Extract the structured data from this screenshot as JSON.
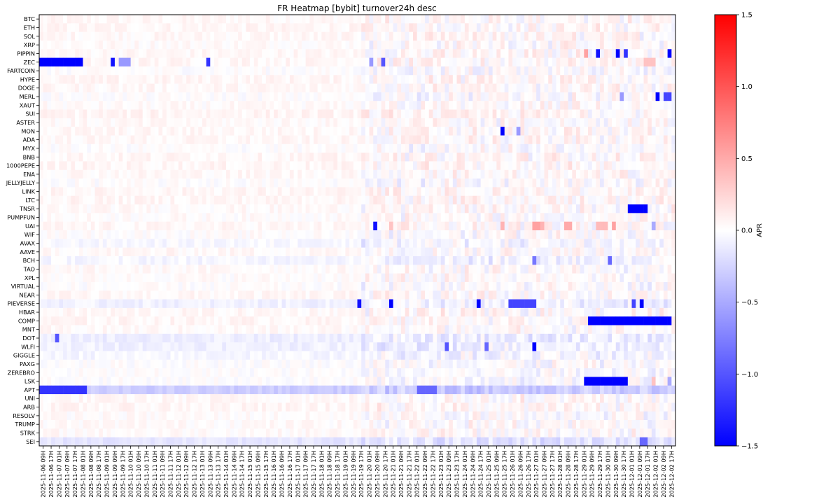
{
  "chart_data": {
    "type": "heatmap",
    "title": "FR Heatmap [bybit] turnover24h desc",
    "colorbar": {
      "label": "APR",
      "vmin": -1.5,
      "vmax": 1.5,
      "ticks": [
        1.5,
        1.0,
        0.5,
        0.0,
        -0.5,
        -1.0,
        -1.5
      ],
      "tick_labels": [
        "1.5",
        "1.0",
        "0.5",
        "0.0",
        "−0.5",
        "−1.0",
        "−1.5"
      ],
      "colormap": "bwr",
      "colors": {
        "low": "#0000ff",
        "mid": "#ffffff",
        "high": "#ff0000"
      }
    },
    "y_labels": [
      "BTC",
      "ETH",
      "SOL",
      "XRP",
      "PIPPIN",
      "ZEC",
      "FARTCOIN",
      "HYPE",
      "DOGE",
      "MERL",
      "XAUT",
      "SUI",
      "ASTER",
      "MON",
      "ADA",
      "MYX",
      "BNB",
      "1000PEPE",
      "ENA",
      "JELLYJELLY",
      "LINK",
      "LTC",
      "TNSR",
      "PUMPFUN",
      "UAI",
      "WIF",
      "AVAX",
      "AAVE",
      "BCH",
      "TAO",
      "XPL",
      "VIRTUAL",
      "NEAR",
      "PIEVERSE",
      "HBAR",
      "COMP",
      "MNT",
      "DOT",
      "WLFI",
      "GIGGLE",
      "PAXG",
      "ZEREBRO",
      "LSK",
      "APT",
      "UNI",
      "ARB",
      "RESOLV",
      "TRUMP",
      "STRK",
      "SEI"
    ],
    "x_labels": [
      "2025-11-06 09H",
      "2025-11-06 17H",
      "2025-11-07 01H",
      "2025-11-07 09H",
      "2025-11-07 17H",
      "2025-11-08 01H",
      "2025-11-08 09H",
      "2025-11-08 17H",
      "2025-11-09 01H",
      "2025-11-09 09H",
      "2025-11-09 17H",
      "2025-11-10 01H",
      "2025-11-10 09H",
      "2025-11-10 17H",
      "2025-11-11 01H",
      "2025-11-11 09H",
      "2025-11-11 17H",
      "2025-11-12 01H",
      "2025-11-12 09H",
      "2025-11-12 17H",
      "2025-11-13 01H",
      "2025-11-13 09H",
      "2025-11-13 17H",
      "2025-11-14 01H",
      "2025-11-14 09H",
      "2025-11-14 17H",
      "2025-11-15 01H",
      "2025-11-15 09H",
      "2025-11-15 17H",
      "2025-11-16 01H",
      "2025-11-16 09H",
      "2025-11-16 17H",
      "2025-11-17 01H",
      "2025-11-17 09H",
      "2025-11-17 17H",
      "2025-11-18 01H",
      "2025-11-18 09H",
      "2025-11-18 17H",
      "2025-11-19 01H",
      "2025-11-19 09H",
      "2025-11-19 17H",
      "2025-11-20 01H",
      "2025-11-20 09H",
      "2025-11-20 17H",
      "2025-11-21 01H",
      "2025-11-21 09H",
      "2025-11-21 17H",
      "2025-11-22 01H",
      "2025-11-22 09H",
      "2025-11-22 17H",
      "2025-11-23 01H",
      "2025-11-23 09H",
      "2025-11-23 17H",
      "2025-11-24 01H",
      "2025-11-24 09H",
      "2025-11-24 17H",
      "2025-11-25 01H",
      "2025-11-25 09H",
      "2025-11-25 17H",
      "2025-11-26 01H",
      "2025-11-26 09H",
      "2025-11-26 17H",
      "2025-11-27 01H",
      "2025-11-27 09H",
      "2025-11-27 17H",
      "2025-11-28 01H",
      "2025-11-28 09H",
      "2025-11-28 17H",
      "2025-11-29 01H",
      "2025-11-29 09H",
      "2025-11-29 17H",
      "2025-11-30 01H",
      "2025-11-30 09H",
      "2025-11-30 17H",
      "2025-12-01 01H",
      "2025-12-01 09H",
      "2025-12-01 17H",
      "2025-12-02 01H",
      "2025-12-02 09H",
      "2025-12-02 17H"
    ],
    "columns_per_x_label": 2,
    "n_columns": 160,
    "values_note_units": "APR",
    "baseline": {
      "BTC": 0.04,
      "ETH": 0.05,
      "SOL": 0.04,
      "XRP": 0.03,
      "PIPPIN": 0.04,
      "ZEC": 0.05,
      "FARTCOIN": 0.0,
      "HYPE": 0.05,
      "DOGE": 0.04,
      "MERL": 0.0,
      "XAUT": 0.02,
      "SUI": 0.06,
      "ASTER": 0.03,
      "MON": 0.04,
      "ADA": 0.04,
      "MYX": 0.0,
      "BNB": 0.05,
      "1000PEPE": 0.05,
      "ENA": 0.04,
      "JELLYJELLY": 0.0,
      "LINK": 0.05,
      "LTC": 0.05,
      "TNSR": 0.03,
      "PUMPFUN": 0.02,
      "UAI": 0.04,
      "WIF": 0.01,
      "AVAX": -0.04,
      "AAVE": 0.04,
      "BCH": -0.05,
      "TAO": 0.03,
      "XPL": 0.02,
      "VIRTUAL": 0.0,
      "NEAR": 0.04,
      "PIEVERSE": -0.08,
      "HBAR": 0.04,
      "COMP": 0.05,
      "MNT": 0.03,
      "DOT": -0.1,
      "WLFI": -0.08,
      "GIGGLE": -0.05,
      "PAXG": 0.0,
      "ZEREBRO": 0.0,
      "LSK": 0.0,
      "APT": -0.3,
      "UNI": 0.04,
      "ARB": 0.05,
      "RESOLV": 0.02,
      "TRUMP": 0.03,
      "STRK": 0.03,
      "SEI": -0.15
    },
    "highlights": [
      {
        "row": "PIPPIN",
        "from": 137,
        "to": 138,
        "value": 0.55
      },
      {
        "row": "PIPPIN",
        "from": 140,
        "to": 141,
        "value": -1.4
      },
      {
        "row": "PIPPIN",
        "from": 145,
        "to": 146,
        "value": -1.5
      },
      {
        "row": "PIPPIN",
        "from": 147,
        "to": 148,
        "value": -1.2
      },
      {
        "row": "PIPPIN",
        "from": 158,
        "to": 159,
        "value": -1.5
      },
      {
        "row": "ZEC",
        "from": 0,
        "to": 11,
        "value": -1.5
      },
      {
        "row": "ZEC",
        "from": 18,
        "to": 19,
        "value": -1.4
      },
      {
        "row": "ZEC",
        "from": 20,
        "to": 23,
        "value": -0.6
      },
      {
        "row": "ZEC",
        "from": 42,
        "to": 43,
        "value": -1.2
      },
      {
        "row": "ZEC",
        "from": 83,
        "to": 84,
        "value": -0.6
      },
      {
        "row": "ZEC",
        "from": 86,
        "to": 87,
        "value": -1.0
      },
      {
        "row": "ZEC",
        "from": 152,
        "to": 155,
        "value": 0.35
      },
      {
        "row": "MERL",
        "from": 146,
        "to": 147,
        "value": -0.6
      },
      {
        "row": "MERL",
        "from": 155,
        "to": 156,
        "value": -1.5
      },
      {
        "row": "MERL",
        "from": 157,
        "to": 159,
        "value": -1.1
      },
      {
        "row": "MON",
        "from": 116,
        "to": 117,
        "value": -1.5
      },
      {
        "row": "MON",
        "from": 120,
        "to": 121,
        "value": -0.6
      },
      {
        "row": "TNSR",
        "from": 148,
        "to": 153,
        "value": -1.5
      },
      {
        "row": "UAI",
        "from": 84,
        "to": 85,
        "value": -1.4
      },
      {
        "row": "UAI",
        "from": 88,
        "to": 89,
        "value": 0.35
      },
      {
        "row": "UAI",
        "from": 116,
        "to": 117,
        "value": 0.45
      },
      {
        "row": "UAI",
        "from": 124,
        "to": 126,
        "value": 0.55
      },
      {
        "row": "UAI",
        "from": 126,
        "to": 127,
        "value": 0.45
      },
      {
        "row": "UAI",
        "from": 132,
        "to": 134,
        "value": 0.5
      },
      {
        "row": "UAI",
        "from": 140,
        "to": 143,
        "value": 0.4
      },
      {
        "row": "UAI",
        "from": 144,
        "to": 145,
        "value": 0.55
      },
      {
        "row": "UAI",
        "from": 154,
        "to": 155,
        "value": -0.5
      },
      {
        "row": "PIEVERSE",
        "from": 80,
        "to": 81,
        "value": -1.4
      },
      {
        "row": "PIEVERSE",
        "from": 88,
        "to": 89,
        "value": -1.5
      },
      {
        "row": "PIEVERSE",
        "from": 110,
        "to": 111,
        "value": -1.5
      },
      {
        "row": "PIEVERSE",
        "from": 118,
        "to": 125,
        "value": -1.1
      },
      {
        "row": "PIEVERSE",
        "from": 149,
        "to": 150,
        "value": -1.1
      },
      {
        "row": "PIEVERSE",
        "from": 151,
        "to": 152,
        "value": -1.5
      },
      {
        "row": "COMP",
        "from": 138,
        "to": 159,
        "value": -1.5
      },
      {
        "row": "WLFI",
        "from": 124,
        "to": 125,
        "value": -1.5
      },
      {
        "row": "WLFI",
        "from": 102,
        "to": 103,
        "value": -1.0
      },
      {
        "row": "WLFI",
        "from": 112,
        "to": 113,
        "value": -0.9
      },
      {
        "row": "LSK",
        "from": 137,
        "to": 148,
        "value": -1.5
      },
      {
        "row": "LSK",
        "from": 154,
        "to": 155,
        "value": 0.35
      },
      {
        "row": "LSK",
        "from": 158,
        "to": 159,
        "value": -0.5
      },
      {
        "row": "APT",
        "from": 0,
        "to": 12,
        "value": -1.2
      },
      {
        "row": "APT",
        "from": 95,
        "to": 100,
        "value": -0.9
      },
      {
        "row": "DOT",
        "from": 4,
        "to": 5,
        "value": -1.0
      },
      {
        "row": "SEI",
        "from": 151,
        "to": 153,
        "value": -0.9
      },
      {
        "row": "BCH",
        "from": 124,
        "to": 125,
        "value": -0.8
      },
      {
        "row": "BCH",
        "from": 143,
        "to": 144,
        "value": -0.9
      }
    ]
  }
}
